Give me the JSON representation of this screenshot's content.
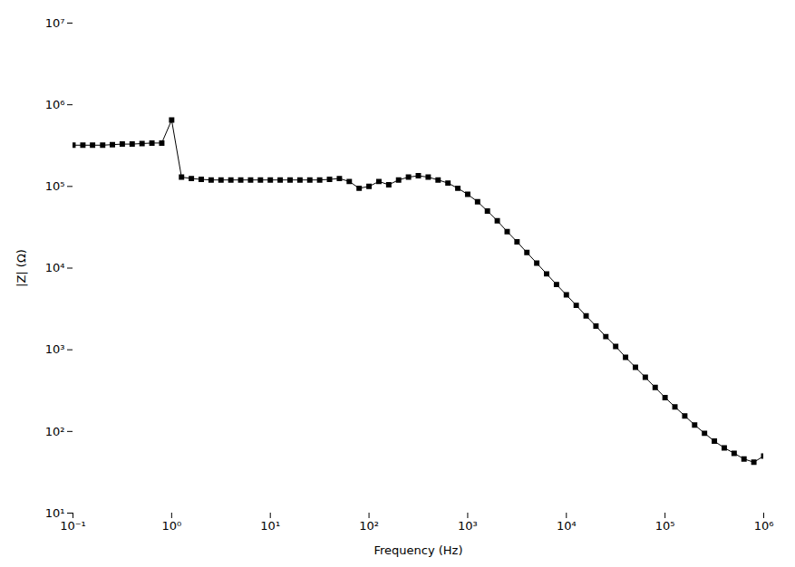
{
  "chart_data": {
    "type": "line",
    "xlabel": "Frequency (Hz)",
    "ylabel": "|Z| (Ω)",
    "log": true,
    "color": "#000000",
    "marker": "square",
    "xlim": [
      0.1,
      1000000
    ],
    "ylim": [
      10,
      10000000
    ],
    "xticks": [
      {
        "value": 0.1,
        "label": "10⁻¹"
      },
      {
        "value": 1,
        "label": "10⁰"
      },
      {
        "value": 10,
        "label": "10¹"
      },
      {
        "value": 100,
        "label": "10²"
      },
      {
        "value": 1000,
        "label": "10³"
      },
      {
        "value": 10000,
        "label": "10⁴"
      },
      {
        "value": 100000,
        "label": "10⁵"
      },
      {
        "value": 1000000,
        "label": "10⁶"
      }
    ],
    "yticks": [
      {
        "value": 10,
        "label": "10¹"
      },
      {
        "value": 100,
        "label": "10²"
      },
      {
        "value": 1000,
        "label": "10³"
      },
      {
        "value": 10000,
        "label": "10⁴"
      },
      {
        "value": 100000,
        "label": "10⁵"
      },
      {
        "value": 1000000,
        "label": "10⁶"
      },
      {
        "value": 10000000,
        "label": "10⁷"
      }
    ],
    "x": [
      0.1,
      0.126,
      0.158,
      0.2,
      0.251,
      0.316,
      0.398,
      0.501,
      0.631,
      0.794,
      1.0,
      1.259,
      1.585,
      1.995,
      2.512,
      3.162,
      3.981,
      5.012,
      6.31,
      7.943,
      10.0,
      12.59,
      15.85,
      19.95,
      25.12,
      31.62,
      39.81,
      50.12,
      63.1,
      79.43,
      100.0,
      125.9,
      158.5,
      199.5,
      251.2,
      316.2,
      398.1,
      501.2,
      631.0,
      794.3,
      1000,
      1259,
      1585,
      1995,
      2512,
      3162,
      3981,
      5012,
      6310,
      7943,
      10000,
      12590,
      15850,
      19950,
      25120,
      31620,
      39810,
      50120,
      63100,
      79430,
      100000,
      125900,
      158500,
      199500,
      251200,
      316200,
      398100,
      501200,
      631000,
      794300,
      1000000
    ],
    "values": [
      320000.0,
      320000.0,
      320000.0,
      320000.0,
      325000.0,
      330000.0,
      330000.0,
      335000.0,
      340000.0,
      340000.0,
      650000.0,
      130000.0,
      125000.0,
      122000.0,
      120000.0,
      120000.0,
      120000.0,
      120000.0,
      120000.0,
      120000.0,
      120000.0,
      120000.0,
      120000.0,
      120000.0,
      120000.0,
      120000.0,
      122000.0,
      125000.0,
      115000.0,
      95000.0,
      100000.0,
      115000.0,
      105000.0,
      120000.0,
      130000.0,
      135000.0,
      130000.0,
      120000.0,
      110000.0,
      95000.0,
      80000.0,
      65000.0,
      50000.0,
      38000.0,
      28000.0,
      21000.0,
      15500.0,
      11500.0,
      8500,
      6300,
      4700,
      3500,
      2600,
      1950,
      1450,
      1100,
      810,
      610,
      460,
      345,
      260,
      200,
      155,
      120,
      95,
      76,
      63,
      54,
      46,
      42,
      50
    ]
  }
}
